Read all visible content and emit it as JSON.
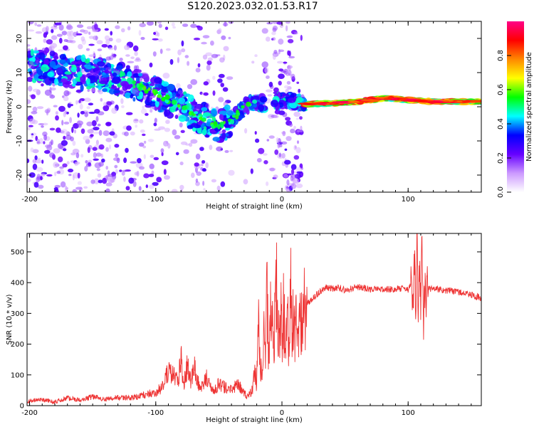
{
  "title": "S120.2023.032.01.53.R17",
  "chart_data": [
    {
      "type": "heatmap",
      "xlabel": "Height of straight line (km)",
      "ylabel": "Frequency (Hz)",
      "xlim": [
        -202,
        158
      ],
      "ylim": [
        -25,
        25
      ],
      "xticks": [
        -200,
        -100,
        0,
        100
      ],
      "yticks": [
        -20,
        -10,
        0,
        10,
        20
      ],
      "grid": false,
      "colorbar": {
        "label": "Normalized spectral amplitude",
        "ticks": [
          0.0,
          0.2,
          0.4,
          0.6,
          0.8
        ],
        "range": [
          0,
          1
        ],
        "colors": [
          "#ffffff",
          "#cc99ff",
          "#6600ff",
          "#0000ff",
          "#00ffff",
          "#00ff00",
          "#ffff00",
          "#ff8800",
          "#ff0000",
          "#ff0088"
        ]
      },
      "ridge": {
        "x": [
          -200,
          -180,
          -160,
          -140,
          -120,
          -100,
          -80,
          -60,
          -50,
          -40,
          -35,
          -30,
          -20,
          -15,
          -10,
          0,
          10,
          20,
          40,
          60,
          80,
          100,
          120,
          140,
          158
        ],
        "y": [
          12,
          11,
          10,
          9,
          7,
          4,
          0,
          -4,
          -6,
          -4,
          -2,
          0,
          1.5,
          1,
          1.5,
          2,
          1.5,
          0.8,
          1,
          1.5,
          2.5,
          2,
          1.5,
          1.5,
          1.5
        ]
      }
    },
    {
      "type": "line",
      "xlabel": "Height of straight line (km)",
      "ylabel": "SNR (10 * v/v)",
      "xlim": [
        -202,
        158
      ],
      "ylim": [
        0,
        560
      ],
      "xticks": [
        -200,
        -100,
        0,
        100
      ],
      "yticks": [
        0,
        100,
        200,
        300,
        400,
        500
      ],
      "grid": false,
      "color": "#ee3333",
      "series": [
        {
          "name": "SNR",
          "x": [
            -202,
            -190,
            -180,
            -170,
            -160,
            -150,
            -140,
            -130,
            -120,
            -110,
            -100,
            -95,
            -90,
            -85,
            -82,
            -80,
            -78,
            -75,
            -72,
            -70,
            -65,
            -60,
            -55,
            -50,
            -45,
            -40,
            -35,
            -30,
            -27,
            -25,
            -23,
            -22,
            -21,
            -20,
            -19,
            -18,
            -17,
            -16,
            -15,
            -14,
            -13,
            -12,
            -11,
            -10,
            -9,
            -8,
            -7,
            -6,
            -5,
            -4,
            -3,
            -2,
            -1,
            0,
            1,
            2,
            3,
            4,
            5,
            6,
            7,
            8,
            9,
            10,
            11,
            12,
            13,
            14,
            15,
            16,
            18,
            20,
            25,
            30,
            35,
            40,
            45,
            50,
            60,
            70,
            80,
            90,
            95,
            100,
            102,
            104,
            105,
            106,
            107,
            108,
            109,
            110,
            111,
            112,
            113,
            114,
            115,
            120,
            130,
            140,
            150,
            158
          ],
          "y": [
            15,
            20,
            12,
            25,
            18,
            30,
            20,
            28,
            25,
            35,
            45,
            60,
            110,
            95,
            80,
            165,
            60,
            130,
            70,
            140,
            50,
            90,
            45,
            70,
            60,
            50,
            70,
            40,
            30,
            40,
            60,
            90,
            110,
            50,
            330,
            200,
            140,
            80,
            120,
            250,
            160,
            380,
            220,
            150,
            300,
            420,
            160,
            240,
            350,
            410,
            180,
            270,
            310,
            220,
            330,
            260,
            200,
            300,
            260,
            150,
            420,
            250,
            300,
            240,
            290,
            200,
            260,
            310,
            250,
            300,
            320,
            330,
            350,
            370,
            385,
            380,
            385,
            375,
            385,
            380,
            380,
            378,
            380,
            375,
            390,
            360,
            500,
            280,
            550,
            230,
            470,
            300,
            540,
            250,
            420,
            320,
            380,
            380,
            375,
            370,
            360,
            350
          ]
        }
      ]
    }
  ]
}
